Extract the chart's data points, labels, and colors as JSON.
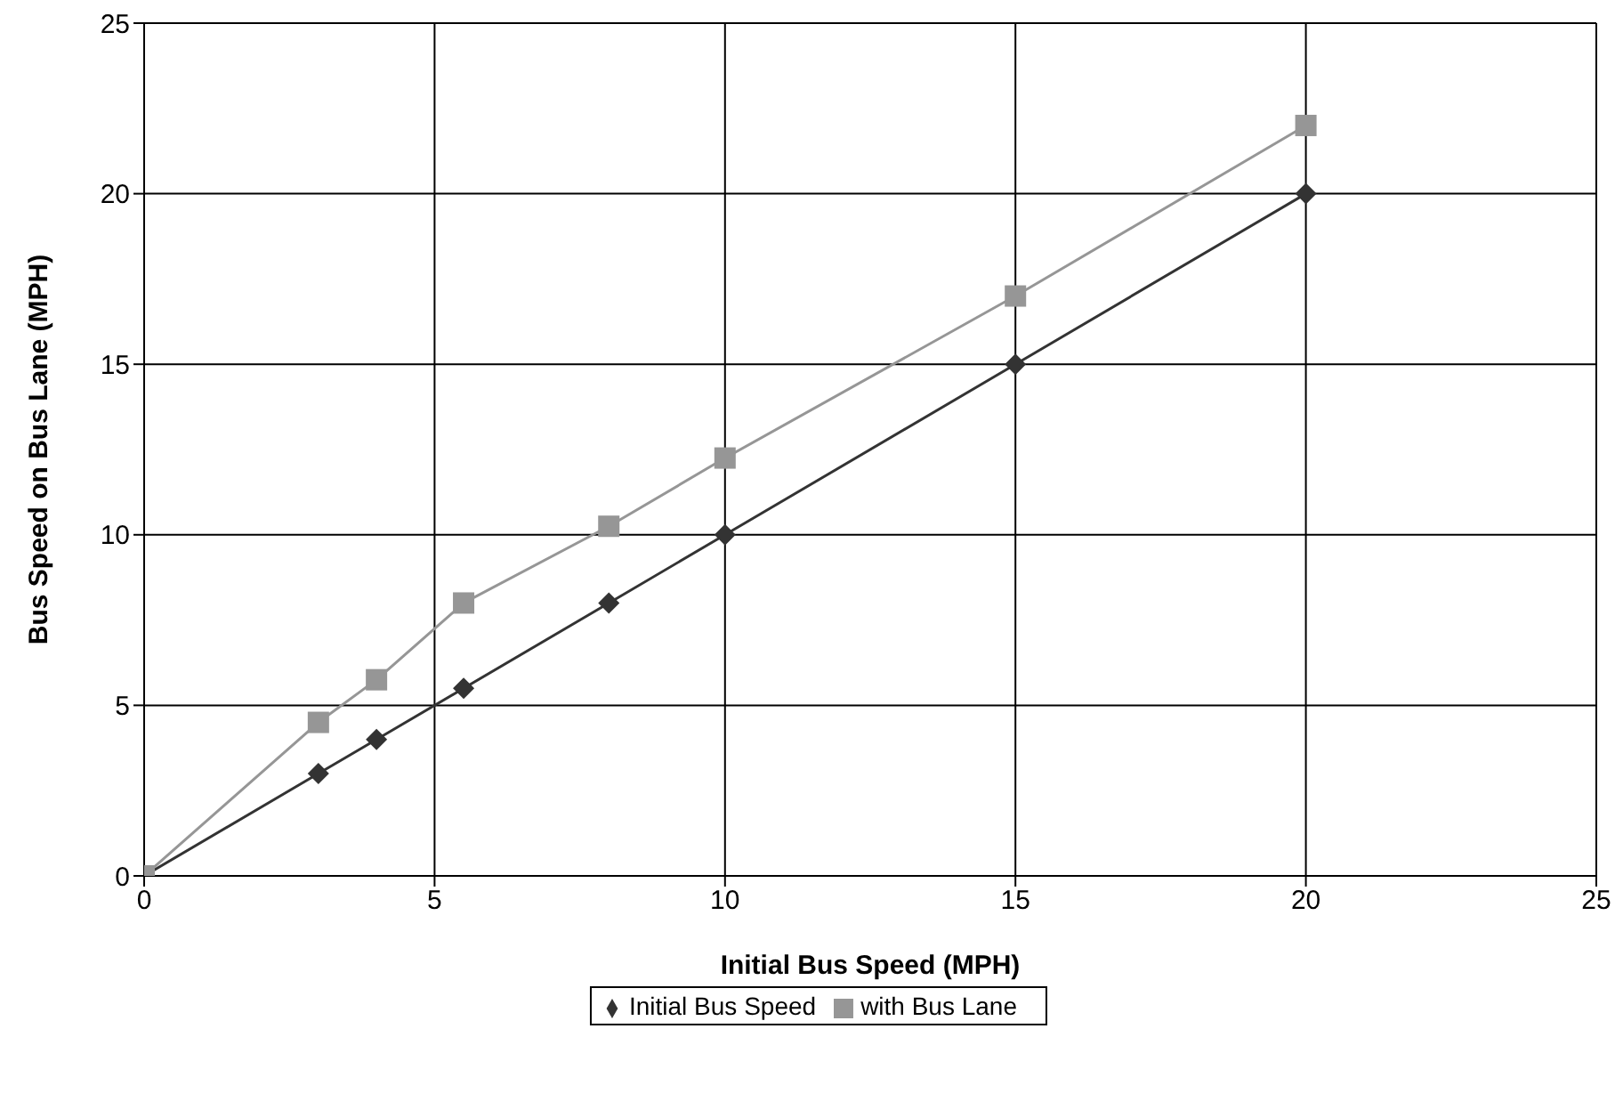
{
  "chart_data": {
    "type": "line",
    "xlabel": "Initial Bus Speed (MPH)",
    "ylabel": "Bus Speed on Bus Lane (MPH)",
    "xlim": [
      0,
      25
    ],
    "xticks": [
      0,
      5,
      10,
      15,
      20,
      25
    ],
    "ylim": [
      0,
      25
    ],
    "yticks": [
      0,
      5,
      10,
      15,
      20,
      25
    ],
    "grid": true,
    "legend": "bottom",
    "line_style": "solid",
    "series": [
      {
        "name": "Initial Bus Speed",
        "color": "#333333",
        "marker": "diamond",
        "x": [
          0,
          3,
          4,
          5.5,
          8,
          10,
          15,
          20
        ],
        "values": [
          0,
          3,
          4,
          5.5,
          8,
          10,
          15,
          20
        ]
      },
      {
        "name": "with Bus Lane",
        "color": "#969696",
        "marker": "square",
        "x": [
          0,
          3,
          4,
          5.5,
          8,
          10,
          15,
          20
        ],
        "values": [
          0,
          4.5,
          5.75,
          8,
          10.25,
          12.25,
          17,
          22
        ]
      }
    ]
  }
}
